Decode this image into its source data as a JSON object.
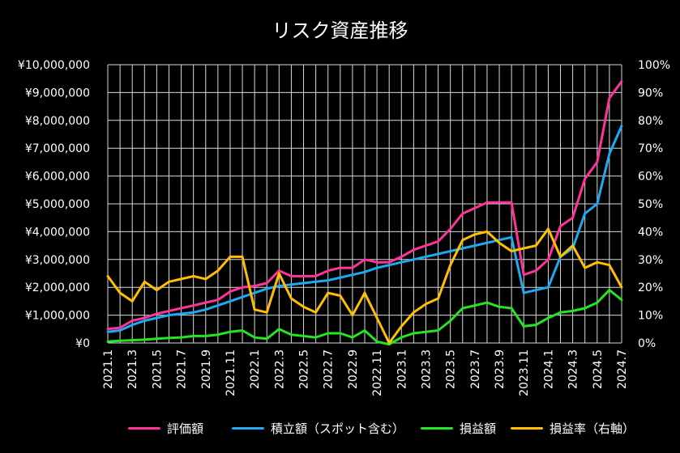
{
  "chart_data": {
    "type": "line",
    "title": "リスク資産推移",
    "x": [
      "2021.1",
      "2021.2",
      "2021.3",
      "2021.4",
      "2021.5",
      "2021.6",
      "2021.7",
      "2021.8",
      "2021.9",
      "2021.10",
      "2021.11",
      "2021.12",
      "2022.1",
      "2022.2",
      "2022.3",
      "2022.4",
      "2022.5",
      "2022.6",
      "2022.7",
      "2022.8",
      "2022.9",
      "2022.10",
      "2022.11",
      "2022.12",
      "2023.1",
      "2023.2",
      "2023.3",
      "2023.4",
      "2023.5",
      "2023.6",
      "2023.7",
      "2023.8",
      "2023.9",
      "2023.10",
      "2023.11",
      "2023.12",
      "2024.1",
      "2024.2",
      "2024.3",
      "2024.4",
      "2024.5",
      "2024.6",
      "2024.7"
    ],
    "x_tick_labels": [
      "2021.1",
      "2021.3",
      "2021.5",
      "2021.7",
      "2021.9",
      "2021.11",
      "2022.1",
      "2022.3",
      "2022.5",
      "2022.7",
      "2022.9",
      "2022.11",
      "2023.1",
      "2023.3",
      "2023.5",
      "2023.7",
      "2023.9",
      "2023.11",
      "2024.1",
      "2024.3",
      "2024.5",
      "2024.7"
    ],
    "y_left": {
      "min": 0,
      "max": 10000000,
      "step": 1000000,
      "tick_labels": [
        "¥0",
        "¥1,000,000",
        "¥2,000,000",
        "¥3,000,000",
        "¥4,000,000",
        "¥5,000,000",
        "¥6,000,000",
        "¥7,000,000",
        "¥8,000,000",
        "¥9,000,000",
        "¥10,000,000"
      ]
    },
    "y_right": {
      "min": 0,
      "max": 1,
      "step": 0.1,
      "tick_labels": [
        "0%",
        "10%",
        "20%",
        "30%",
        "40%",
        "50%",
        "60%",
        "70%",
        "80%",
        "90%",
        "100%"
      ]
    },
    "grid": true,
    "legend_position": "bottom",
    "series": [
      {
        "name": "評価額",
        "axis": "left",
        "color": "#ff3399",
        "values": [
          500000,
          550000,
          800000,
          900000,
          1050000,
          1150000,
          1250000,
          1350000,
          1450000,
          1550000,
          1850000,
          2000000,
          2050000,
          2150000,
          2600000,
          2400000,
          2400000,
          2400000,
          2600000,
          2700000,
          2700000,
          3000000,
          2900000,
          2900000,
          3100000,
          3350000,
          3500000,
          3650000,
          4100000,
          4650000,
          4850000,
          5050000,
          5050000,
          5050000,
          2450000,
          2600000,
          3000000,
          4200000,
          4500000,
          5900000,
          6500000,
          8800000,
          9400000
        ]
      },
      {
        "name": "積立額（スポット含む）",
        "axis": "left",
        "color": "#1eaaf1",
        "values": [
          400000,
          450000,
          650000,
          800000,
          900000,
          1000000,
          1050000,
          1100000,
          1200000,
          1350000,
          1500000,
          1650000,
          1800000,
          1950000,
          2050000,
          2100000,
          2150000,
          2200000,
          2250000,
          2350000,
          2450000,
          2550000,
          2700000,
          2800000,
          2900000,
          3000000,
          3100000,
          3200000,
          3300000,
          3400000,
          3500000,
          3600000,
          3700000,
          3800000,
          1800000,
          1900000,
          2000000,
          3100000,
          3400000,
          4650000,
          5000000,
          6800000,
          7800000
        ]
      },
      {
        "name": "損益額",
        "axis": "left",
        "color": "#22e622",
        "values": [
          50000,
          80000,
          100000,
          120000,
          150000,
          180000,
          200000,
          250000,
          250000,
          300000,
          400000,
          450000,
          200000,
          150000,
          500000,
          300000,
          250000,
          200000,
          350000,
          350000,
          200000,
          450000,
          50000,
          -50000,
          200000,
          350000,
          400000,
          450000,
          800000,
          1250000,
          1350000,
          1450000,
          1300000,
          1250000,
          600000,
          650000,
          900000,
          1100000,
          1150000,
          1250000,
          1450000,
          1900000,
          1550000
        ]
      },
      {
        "name": "損益率（右軸）",
        "axis": "right",
        "color": "#ffbf00",
        "values": [
          0.24,
          0.18,
          0.15,
          0.22,
          0.19,
          0.22,
          0.23,
          0.24,
          0.23,
          0.26,
          0.31,
          0.31,
          0.12,
          0.11,
          0.25,
          0.16,
          0.13,
          0.11,
          0.18,
          0.17,
          0.1,
          0.18,
          0.09,
          0.0,
          0.06,
          0.11,
          0.14,
          0.16,
          0.28,
          0.37,
          0.39,
          0.4,
          0.36,
          0.33,
          0.34,
          0.35,
          0.41,
          0.31,
          0.35,
          0.27,
          0.29,
          0.28,
          0.2
        ]
      }
    ]
  }
}
